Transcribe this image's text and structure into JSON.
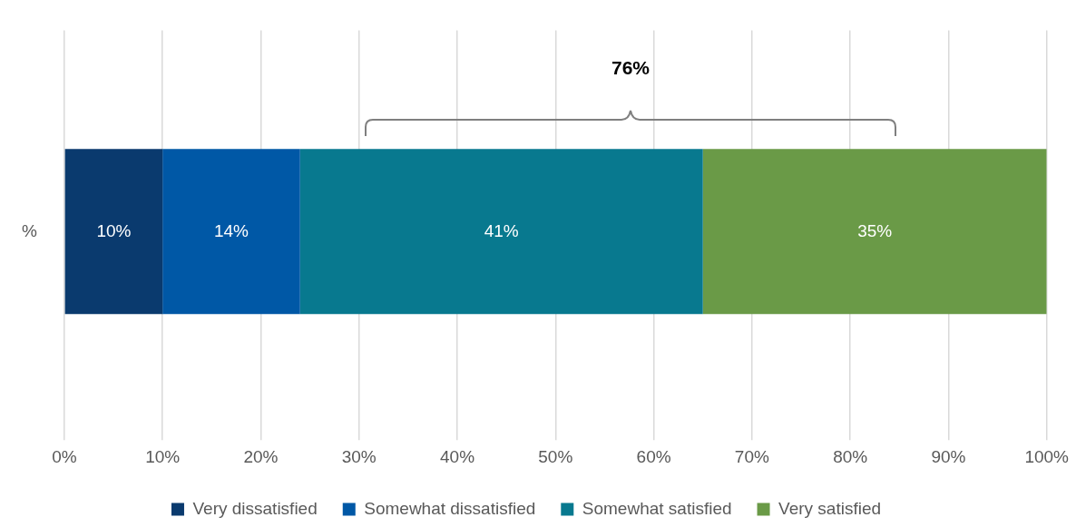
{
  "chart_data": {
    "type": "bar",
    "orientation": "horizontal",
    "stacked": true,
    "categories": [
      "%"
    ],
    "series": [
      {
        "name": "Very dissatisfied",
        "color": "#0a3a6e",
        "values": [
          10
        ],
        "value_labels": [
          "10%"
        ]
      },
      {
        "name": "Somewhat dissatisfied",
        "color": "#0058a6",
        "values": [
          14
        ],
        "value_labels": [
          "14%"
        ]
      },
      {
        "name": "Somewhat satisfied",
        "color": "#08798f",
        "values": [
          41
        ],
        "value_labels": [
          "41%"
        ]
      },
      {
        "name": "Very satisfied",
        "color": "#6a9a47",
        "values": [
          35
        ],
        "value_labels": [
          "35%"
        ]
      }
    ],
    "xlim": [
      0,
      100
    ],
    "xticks": [
      {
        "value": 0,
        "label": "0%"
      },
      {
        "value": 10,
        "label": "10%"
      },
      {
        "value": 20,
        "label": "20%"
      },
      {
        "value": 30,
        "label": "30%"
      },
      {
        "value": 40,
        "label": "40%"
      },
      {
        "value": 50,
        "label": "50%"
      },
      {
        "value": 60,
        "label": "60%"
      },
      {
        "value": 70,
        "label": "70%"
      },
      {
        "value": 80,
        "label": "80%"
      },
      {
        "value": 90,
        "label": "90%"
      },
      {
        "value": 100,
        "label": "100%"
      }
    ],
    "grid": "x",
    "legend": "bottom",
    "annotations": [
      "76%"
    ]
  }
}
